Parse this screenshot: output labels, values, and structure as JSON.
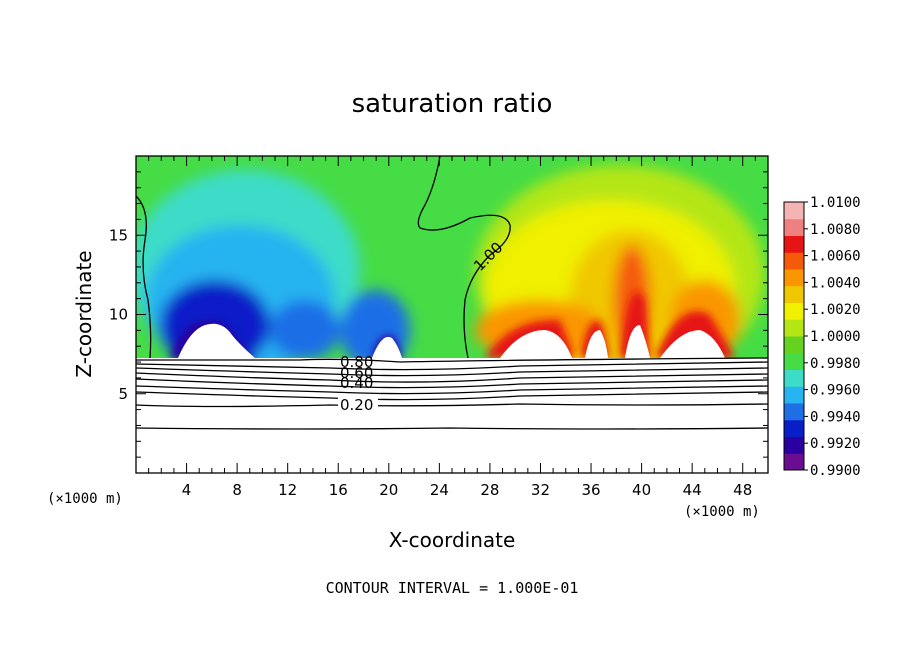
{
  "chart_data": {
    "type": "heatmap",
    "title": "saturation ratio",
    "xlabel": "X-coordinate",
    "ylabel": "Z-coordinate",
    "x_unit_label": "(×1000 m)",
    "x_unit_label_right": "(×1000 m)",
    "xlim": [
      0,
      50
    ],
    "ylim": [
      0,
      20
    ],
    "xticks": [
      4,
      8,
      12,
      16,
      20,
      24,
      28,
      32,
      36,
      40,
      44,
      48
    ],
    "xtick_labels": [
      "4",
      "8",
      "12",
      "16",
      "20",
      "24",
      "28",
      "32",
      "36",
      "40",
      "44",
      "48"
    ],
    "yticks": [
      5,
      10,
      15
    ],
    "ytick_labels": [
      "5",
      "10",
      "15"
    ],
    "colorbar": {
      "min": 0.99,
      "max": 1.01,
      "labels": [
        "1.0100",
        "1.0080",
        "1.0060",
        "1.0040",
        "1.0020",
        "1.0000",
        "0.9980",
        "0.9960",
        "0.9940",
        "0.9920",
        "0.9900"
      ],
      "colors": [
        "#6a0d91",
        "#2a00a0",
        "#0a1ec8",
        "#1e6ee6",
        "#28b4f0",
        "#3cdcc8",
        "#46dc46",
        "#64d21e",
        "#b4e614",
        "#f0f000",
        "#f0c800",
        "#fa9600",
        "#f55a0a",
        "#e61414",
        "#f08080",
        "#f4b4b4"
      ]
    },
    "contour_lines": {
      "levels": [
        0.2,
        0.4,
        0.6,
        0.8,
        1.0
      ],
      "labels": [
        "0.20",
        "0.40",
        "0.60",
        "0.80",
        "1.00"
      ]
    },
    "footer": "CONTOUR INTERVAL = 1.000E-01"
  }
}
